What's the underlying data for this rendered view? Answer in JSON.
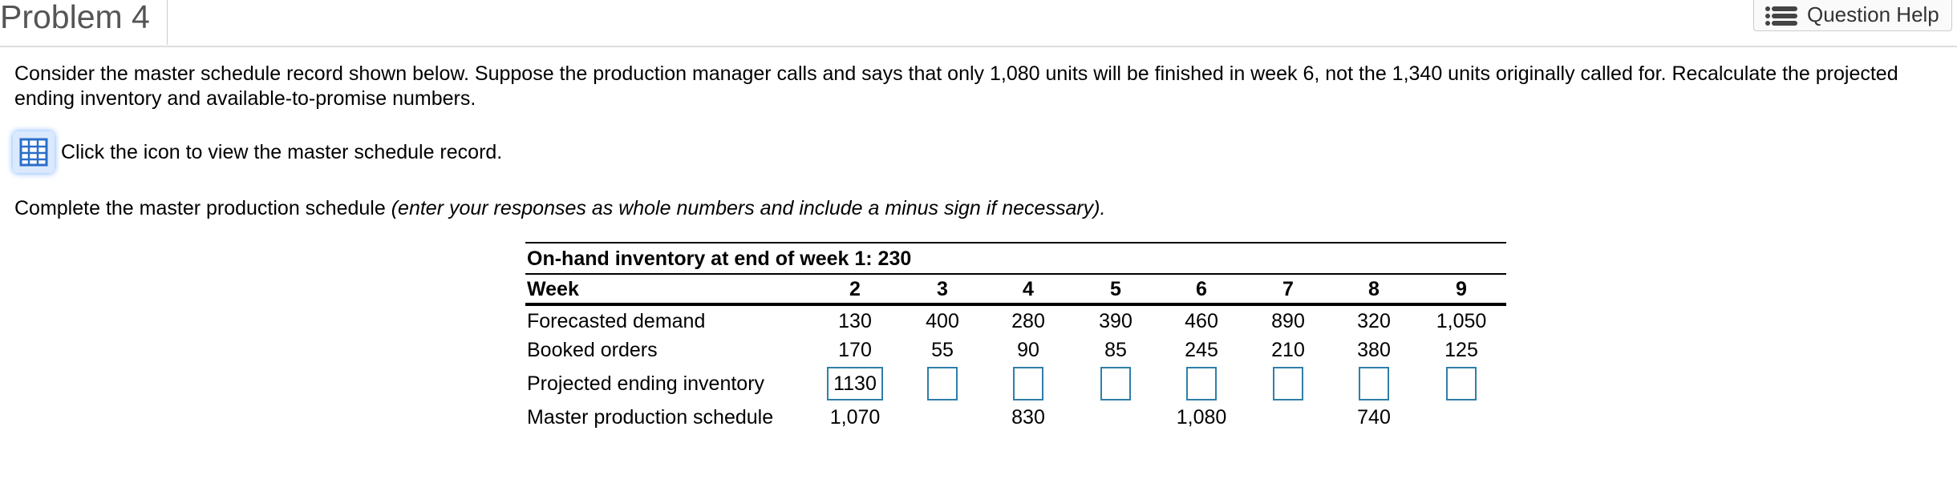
{
  "header": {
    "title": "Problem 4",
    "help_button": "Question Help"
  },
  "instructions": {
    "line1": "Consider the master schedule record shown below. Suppose the production manager calls and says that only 1,080 units will be finished in week 6, not the 1,340 units originally called for. Recalculate the projected",
    "line2": "ending inventory and available-to-promise numbers.",
    "icon_text": "Click the icon to view the master schedule record.",
    "task": "Complete the master production schedule",
    "task_note": "(enter your responses as whole numbers and include a minus sign if necessary)."
  },
  "table": {
    "caption": "On-hand inventory at end of week 1: 230",
    "header": [
      "Week",
      "2",
      "3",
      "4",
      "5",
      "6",
      "7",
      "8",
      "9"
    ],
    "rows": [
      [
        "Forecasted demand",
        "130",
        "400",
        "280",
        "390",
        "460",
        "890",
        "320",
        "1,050"
      ],
      [
        "Booked orders",
        "170",
        "55",
        "90",
        "85",
        "245",
        "210",
        "380",
        "125"
      ],
      [
        "Projected ending inventory",
        "1130",
        null,
        null,
        null,
        null,
        null,
        null,
        null
      ],
      [
        "Master production schedule",
        "1,070",
        null,
        "830",
        null,
        "1,080",
        null,
        "740",
        null
      ]
    ]
  }
}
